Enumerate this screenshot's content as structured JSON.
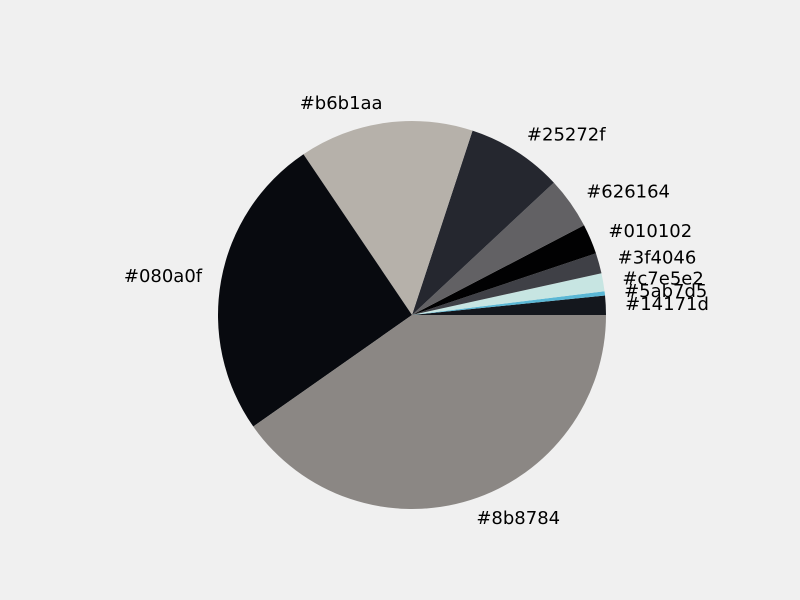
{
  "chart_data": {
    "type": "pie",
    "slices": [
      {
        "label": "#14171d",
        "value": 1.6,
        "color": "#14171d"
      },
      {
        "label": "#5ab7d5",
        "value": 0.35,
        "color": "#5ab7d5"
      },
      {
        "label": "#c7e5e2",
        "value": 1.5,
        "color": "#c7e5e2"
      },
      {
        "label": "#3f4046",
        "value": 1.7,
        "color": "#3f4046"
      },
      {
        "label": "#010102",
        "value": 2.5,
        "color": "#010102"
      },
      {
        "label": "#626164",
        "value": 4.3,
        "color": "#626164"
      },
      {
        "label": "#25272f",
        "value": 8.0,
        "color": "#25272f"
      },
      {
        "label": "#b6b1aa",
        "value": 14.5,
        "color": "#b6b1aa"
      },
      {
        "label": "#080a0f",
        "value": 25.3,
        "color": "#080a0f"
      },
      {
        "label": "#8b8784",
        "value": 40.25,
        "color": "#8b8784"
      }
    ],
    "start_angle": 0,
    "direction": "counterclockwise",
    "legend": false
  }
}
